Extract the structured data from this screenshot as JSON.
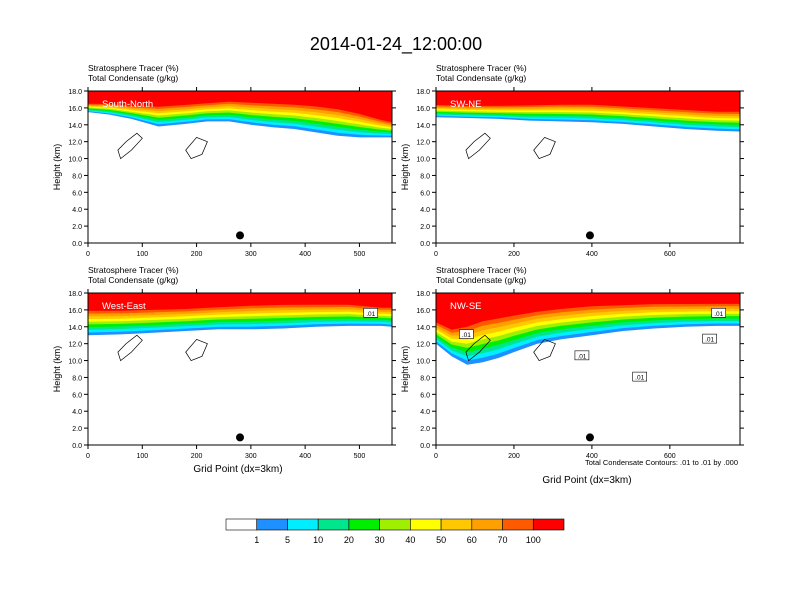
{
  "figure": {
    "title": "2014-01-24_12:00:00",
    "x_axis_label": "Grid Point (dx=3km)",
    "contour_note": "Total Condensate Contours: .01 to .01 by .000"
  },
  "colorbar": {
    "levels": [
      "1",
      "5",
      "10",
      "20",
      "30",
      "40",
      "50",
      "60",
      "70",
      "100"
    ],
    "colors": [
      "#ffffff",
      "#1e90ff",
      "#00eeff",
      "#00e68c",
      "#00ee00",
      "#a0ee00",
      "#ffff00",
      "#ffc800",
      "#ff9f00",
      "#ff5a00",
      "#ff0000"
    ]
  },
  "chart_data": [
    {
      "type": "heatmap",
      "left_title_1": "Stratosphere Tracer   (%)",
      "left_title_2": "Total Condensate   (g/kg)",
      "panel_label": "South-North",
      "ylabel": "Height (km)",
      "xlabel": "",
      "ylim": [
        0,
        18
      ],
      "yticks": [
        "0.0",
        "2.0",
        "4.0",
        "6.0",
        "8.0",
        "10.0",
        "12.0",
        "14.0",
        "16.0",
        "18.0"
      ],
      "xlim": [
        0,
        560
      ],
      "xticks": [
        "0",
        "100",
        "200",
        "300",
        "400",
        "500"
      ],
      "marker_x": 280,
      "tracer_boundary_km": {
        "x": [
          0,
          40,
          80,
          130,
          180,
          220,
          260,
          300,
          340,
          380,
          420,
          460,
          500,
          540,
          560
        ],
        "top_10pct": [
          16.0,
          15.7,
          15.2,
          14.3,
          14.6,
          14.9,
          14.9,
          14.5,
          14.2,
          14.0,
          13.6,
          13.2,
          13.0,
          13.0,
          13.0
        ],
        "top_100pct": [
          16.6,
          16.6,
          16.4,
          16.4,
          16.6,
          16.8,
          17.0,
          16.9,
          16.8,
          16.7,
          16.5,
          16.2,
          15.6,
          14.8,
          14.5
        ]
      },
      "contour_labels": []
    },
    {
      "type": "heatmap",
      "left_title_1": "Stratosphere Tracer   (%)",
      "left_title_2": "Total Condensate   (g/kg)",
      "panel_label": "SW-NE",
      "ylabel": "Height (km)",
      "xlabel": "",
      "ylim": [
        0,
        18
      ],
      "yticks": [
        "0.0",
        "2.0",
        "4.0",
        "6.0",
        "8.0",
        "10.0",
        "12.0",
        "14.0",
        "16.0",
        "18.0"
      ],
      "xlim": [
        0,
        780
      ],
      "xticks": [
        "0",
        "200",
        "400",
        "600"
      ],
      "marker_x": 395,
      "tracer_boundary_km": {
        "x": [
          0,
          80,
          160,
          240,
          320,
          400,
          480,
          560,
          640,
          720,
          780
        ],
        "top_10pct": [
          15.4,
          15.3,
          15.2,
          15.0,
          14.9,
          14.8,
          14.6,
          14.3,
          14.0,
          13.8,
          13.7
        ],
        "top_100pct": [
          16.5,
          16.4,
          16.4,
          16.5,
          16.6,
          16.6,
          16.4,
          16.2,
          16.0,
          15.8,
          15.8
        ]
      },
      "contour_labels": []
    },
    {
      "type": "heatmap",
      "left_title_1": "Stratosphere Tracer   (%)",
      "left_title_2": "Total Condensate   (g/kg)",
      "panel_label": "West-East",
      "ylabel": "Height (km)",
      "xlabel": "Grid Point (dx=3km)",
      "ylim": [
        0,
        18
      ],
      "yticks": [
        "0.0",
        "2.0",
        "4.0",
        "6.0",
        "8.0",
        "10.0",
        "12.0",
        "14.0",
        "16.0",
        "18.0"
      ],
      "xlim": [
        0,
        560
      ],
      "xticks": [
        "0",
        "100",
        "200",
        "300",
        "400",
        "500"
      ],
      "marker_x": 280,
      "tracer_boundary_km": {
        "x": [
          0,
          60,
          120,
          180,
          240,
          300,
          360,
          420,
          480,
          540,
          560
        ],
        "top_10pct": [
          13.5,
          13.6,
          13.8,
          14.0,
          14.2,
          14.2,
          14.3,
          14.5,
          14.6,
          14.6,
          14.5
        ],
        "top_100pct": [
          16.2,
          16.2,
          16.3,
          16.4,
          16.6,
          16.8,
          16.9,
          16.9,
          16.9,
          16.5,
          16.5
        ]
      },
      "contour_labels": [
        ".01"
      ]
    },
    {
      "type": "heatmap",
      "left_title_1": "Stratosphere Tracer   (%)",
      "left_title_2": "Total Condensate   (g/kg)",
      "panel_label": "NW-SE",
      "ylabel": "Height (km)",
      "xlabel": "Grid Point (dx=3km)",
      "ylim": [
        0,
        18
      ],
      "yticks": [
        "0.0",
        "2.0",
        "4.0",
        "6.0",
        "8.0",
        "10.0",
        "12.0",
        "14.0",
        "16.0",
        "18.0"
      ],
      "xlim": [
        0,
        780
      ],
      "xticks": [
        "0",
        "200",
        "400",
        "600"
      ],
      "marker_x": 395,
      "tracer_boundary_km": {
        "x": [
          0,
          40,
          80,
          120,
          160,
          200,
          260,
          320,
          400,
          480,
          560,
          640,
          720,
          780
        ],
        "top_10pct": [
          12.5,
          11.0,
          10.0,
          10.3,
          10.8,
          11.5,
          12.5,
          13.0,
          13.5,
          14.0,
          14.3,
          14.5,
          14.6,
          14.6
        ],
        "top_100pct": [
          14.8,
          14.0,
          14.5,
          15.2,
          15.5,
          15.8,
          16.2,
          16.5,
          16.8,
          16.9,
          17.0,
          17.0,
          17.0,
          17.0
        ]
      },
      "contour_labels": [
        ".01",
        ".01",
        ".01",
        ".01",
        ".01"
      ]
    }
  ]
}
